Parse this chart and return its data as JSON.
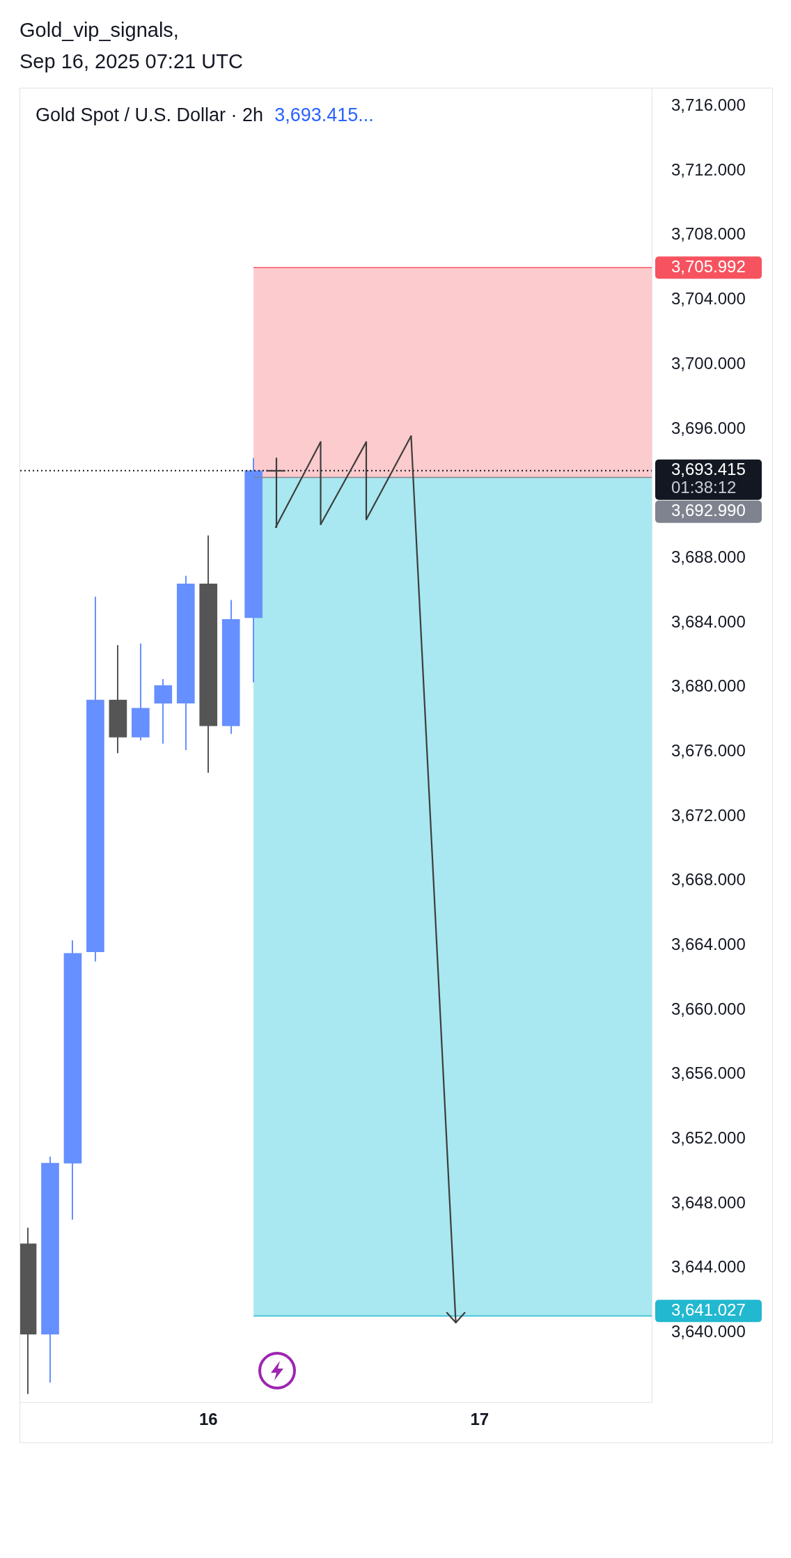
{
  "chart_data": {
    "type": "candlestick",
    "title": "Gold_vip_signals,",
    "subtitle": "Sep 16, 2025 07:21 UTC",
    "annotations": [
      "Gold Spot / U.S. Dollar · 2h",
      "3,693.415..."
    ],
    "x": [
      "2025-09-15T08:00",
      "2025-09-15T10:00",
      "2025-09-15T12:00",
      "2025-09-15T14:00",
      "2025-09-15T16:00",
      "2025-09-15T18:00",
      "2025-09-15T20:00",
      "2025-09-15T22:00",
      "2025-09-16T00:00",
      "2025-09-16T02:00",
      "2025-09-16T04:00"
    ],
    "ohlc": [
      [
        3645.5,
        3646.5,
        3636.2,
        3639.9
      ],
      [
        3639.9,
        3650.9,
        3636.9,
        3650.5
      ],
      [
        3650.5,
        3664.3,
        3647.0,
        3663.5
      ],
      [
        3663.6,
        3685.6,
        3663.0,
        3679.2
      ],
      [
        3679.2,
        3682.6,
        3675.9,
        3676.9
      ],
      [
        3676.9,
        3682.7,
        3676.7,
        3678.7
      ],
      [
        3679.0,
        3680.5,
        3676.5,
        3680.1
      ],
      [
        3679.0,
        3686.9,
        3676.1,
        3686.4
      ],
      [
        3686.4,
        3689.4,
        3674.7,
        3677.6
      ],
      [
        3677.6,
        3685.4,
        3677.1,
        3684.2
      ],
      [
        3684.3,
        3694.2,
        3680.3,
        3693.415
      ]
    ],
    "colors": [
      "#555555",
      "#6690ff",
      "#6690ff",
      "#6690ff",
      "#555555",
      "#6690ff",
      "#6690ff",
      "#6690ff",
      "#555555",
      "#6690ff",
      "#6690ff"
    ],
    "xlim": [
      "2025-09-15T07:21",
      "2025-09-17T15:14"
    ],
    "xticks": [
      {
        "value": "2025-09-16T00:00",
        "label": "16"
      },
      {
        "value": "2025-09-17T00:00",
        "label": "17"
      }
    ],
    "ylim": [
      3635.7,
      3717.1
    ],
    "yticks": [
      {
        "value": 3640,
        "label": "3,640.000"
      },
      {
        "value": 3644,
        "label": "3,644.000"
      },
      {
        "value": 3648,
        "label": "3,648.000"
      },
      {
        "value": 3652,
        "label": "3,652.000"
      },
      {
        "value": 3656,
        "label": "3,656.000"
      },
      {
        "value": 3660,
        "label": "3,660.000"
      },
      {
        "value": 3664,
        "label": "3,664.000"
      },
      {
        "value": 3668,
        "label": "3,668.000"
      },
      {
        "value": 3672,
        "label": "3,672.000"
      },
      {
        "value": 3676,
        "label": "3,676.000"
      },
      {
        "value": 3680,
        "label": "3,680.000"
      },
      {
        "value": 3684,
        "label": "3,684.000"
      },
      {
        "value": 3688,
        "label": "3,688.000"
      },
      {
        "value": 3696,
        "label": "3,696.000"
      },
      {
        "value": 3700,
        "label": "3,700.000"
      },
      {
        "value": 3704,
        "label": "3,704.000"
      },
      {
        "value": 3708,
        "label": "3,708.000"
      },
      {
        "value": 3712,
        "label": "3,712.000"
      },
      {
        "value": 3716,
        "label": "3,716.000"
      }
    ],
    "bands": [
      {
        "axis": "y",
        "from": 3692.99,
        "to": 3705.992,
        "color": "#fccbcd"
      },
      {
        "axis": "y",
        "from": 3641.027,
        "to": 3692.99,
        "color": "#a9e8f0"
      }
    ],
    "ref_lines": [
      {
        "axis": "y",
        "value": 3705.992,
        "label": "3,705.992",
        "color": "#f7525f"
      },
      {
        "axis": "y",
        "value": 3693.415,
        "label": "3,693.415\n01:38:12",
        "color": "#131722",
        "line_style": "dotted"
      },
      {
        "axis": "y",
        "value": 3692.99,
        "label": "3,692.990",
        "color": "#7f838f"
      },
      {
        "axis": "y",
        "value": 3641.027,
        "label": "3,641.027",
        "color": "#22b8cf"
      }
    ]
  }
}
